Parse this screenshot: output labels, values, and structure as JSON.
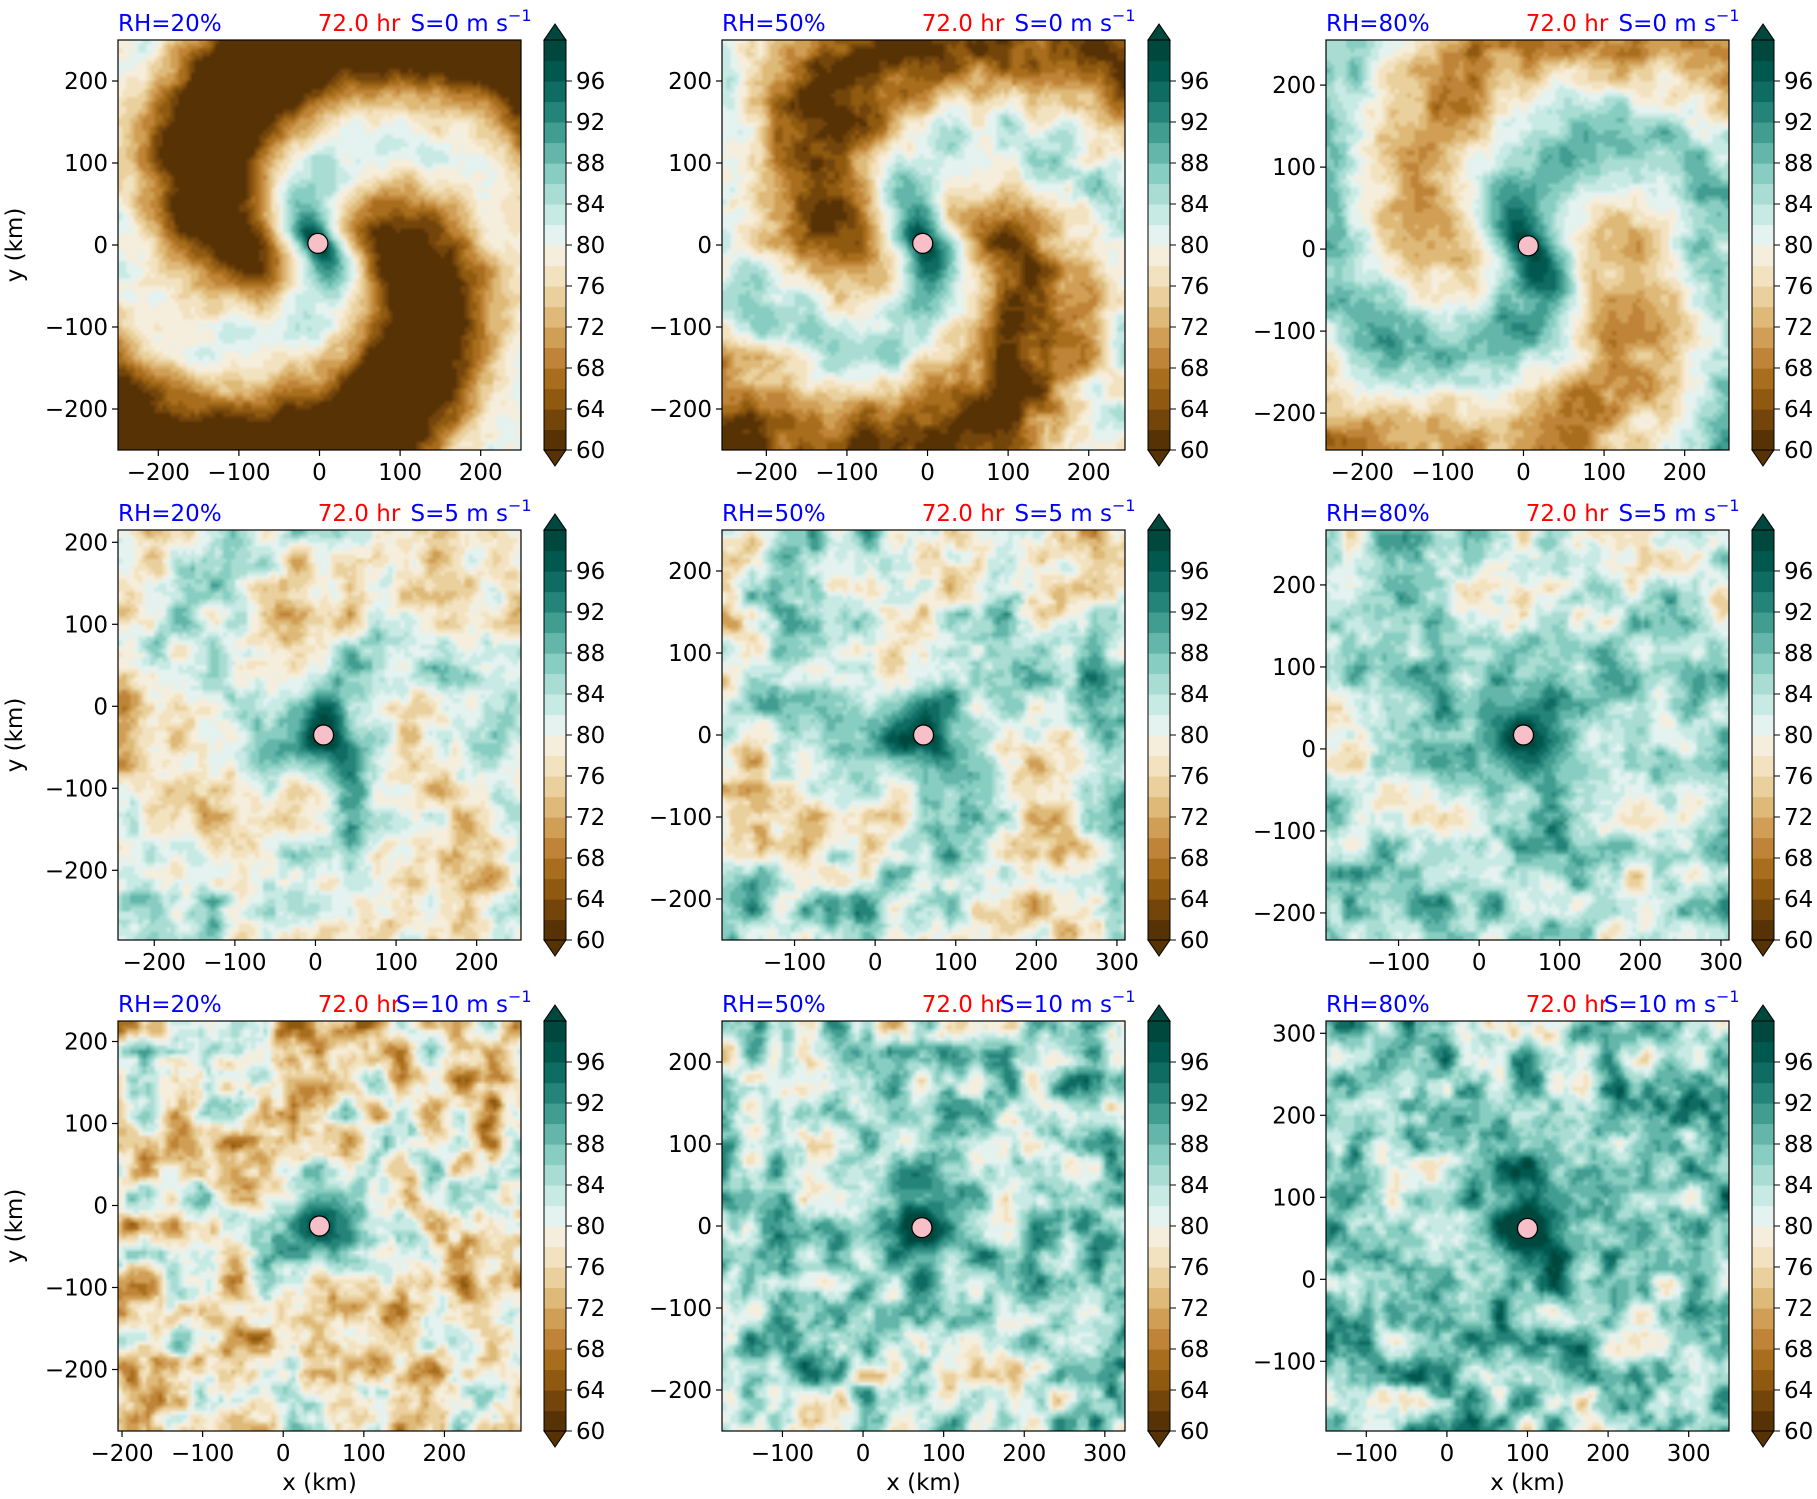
{
  "figure": {
    "description_free": true,
    "colorbar": {
      "levels": [
        60,
        62,
        64,
        66,
        68,
        70,
        72,
        74,
        76,
        78,
        80,
        82,
        84,
        86,
        88,
        90,
        92,
        94,
        96,
        98,
        100
      ],
      "tick_labels": [
        "60",
        "64",
        "68",
        "72",
        "76",
        "80",
        "84",
        "88",
        "92",
        "96"
      ],
      "colors": [
        "#573205",
        "#74450b",
        "#8f5a10",
        "#a86e1d",
        "#bf8437",
        "#d09f55",
        "#deb978",
        "#ead09d",
        "#f3e2bf",
        "#f6eedc",
        "#e4f2f0",
        "#c8eae4",
        "#a9ddd3",
        "#88cdc1",
        "#63b6a9",
        "#419d90",
        "#258479",
        "#0e6c62",
        "#01584e",
        "#00473d"
      ],
      "extend": "both"
    },
    "marker_color": "#f7c0c8",
    "title_colors": {
      "rh": "#0000ff",
      "time": "#ff0000",
      "shear": "#0000ff"
    }
  },
  "chart_data": [
    {
      "type": "heatmap",
      "row": 0,
      "col": 0,
      "title_rh": "RH=20%",
      "title_time": "72.0 hr",
      "title_shear": "S=0 m s",
      "title_shear_exp": "−1",
      "xlim": [
        -250,
        250
      ],
      "ylim": [
        -250,
        250
      ],
      "xticks": [
        -200,
        -100,
        0,
        100,
        200
      ],
      "xtick_labels": [
        "−200",
        "−100",
        "0",
        "100",
        "200"
      ],
      "yticks": [
        -200,
        -100,
        0,
        100,
        200
      ],
      "ytick_labels": [
        "−200",
        "−100",
        "0",
        "100",
        "200"
      ],
      "xlabel": "",
      "ylabel": "y (km)",
      "center": [
        -2,
        2
      ]
    },
    {
      "type": "heatmap",
      "row": 0,
      "col": 1,
      "title_rh": "RH=50%",
      "title_time": "72.0 hr",
      "title_shear": "S=0 m s",
      "title_shear_exp": "−1",
      "xlim": [
        -255,
        245
      ],
      "ylim": [
        -250,
        250
      ],
      "xticks": [
        -200,
        -100,
        0,
        100,
        200
      ],
      "xtick_labels": [
        "−200",
        "−100",
        "0",
        "100",
        "200"
      ],
      "yticks": [
        -200,
        -100,
        0,
        100,
        200
      ],
      "ytick_labels": [
        "−200",
        "−100",
        "0",
        "100",
        "200"
      ],
      "xlabel": "",
      "ylabel": "",
      "center": [
        -6,
        2
      ]
    },
    {
      "type": "heatmap",
      "row": 0,
      "col": 2,
      "title_rh": "RH=80%",
      "title_time": "72.0 hr",
      "title_shear": "S=0 m s",
      "title_shear_exp": "−1",
      "xlim": [
        -245,
        255
      ],
      "ylim": [
        -245,
        255
      ],
      "xticks": [
        -200,
        -100,
        0,
        100,
        200
      ],
      "xtick_labels": [
        "−200",
        "−100",
        "0",
        "100",
        "200"
      ],
      "yticks": [
        -200,
        -100,
        0,
        100,
        200
      ],
      "ytick_labels": [
        "−200",
        "−100",
        "0",
        "100",
        "200"
      ],
      "xlabel": "",
      "ylabel": "",
      "center": [
        6,
        4
      ]
    },
    {
      "type": "heatmap",
      "row": 1,
      "col": 0,
      "title_rh": "RH=20%",
      "title_time": "72.0 hr",
      "title_shear": "S=5 m s",
      "title_shear_exp": "−1",
      "xlim": [
        -245,
        255
      ],
      "ylim": [
        -285,
        215
      ],
      "xticks": [
        -200,
        -100,
        0,
        100,
        200
      ],
      "xtick_labels": [
        "−200",
        "−100",
        "0",
        "100",
        "200"
      ],
      "yticks": [
        -200,
        -100,
        0,
        100,
        200
      ],
      "ytick_labels": [
        "−200",
        "−100",
        "0",
        "100",
        "200"
      ],
      "xlabel": "",
      "ylabel": "y (km)",
      "center": [
        10,
        -35
      ]
    },
    {
      "type": "heatmap",
      "row": 1,
      "col": 1,
      "title_rh": "RH=50%",
      "title_time": "72.0 hr",
      "title_shear": "S=5 m s",
      "title_shear_exp": "−1",
      "xlim": [
        -190,
        310
      ],
      "ylim": [
        -250,
        250
      ],
      "xticks": [
        -100,
        0,
        100,
        200,
        300
      ],
      "xtick_labels": [
        "−100",
        "0",
        "100",
        "200",
        "300"
      ],
      "yticks": [
        -200,
        -100,
        0,
        100,
        200
      ],
      "ytick_labels": [
        "−200",
        "−100",
        "0",
        "100",
        "200"
      ],
      "xlabel": "",
      "ylabel": "",
      "center": [
        60,
        0
      ]
    },
    {
      "type": "heatmap",
      "row": 1,
      "col": 2,
      "title_rh": "RH=80%",
      "title_time": "72.0 hr",
      "title_shear": "S=5 m s",
      "title_shear_exp": "−1",
      "xlim": [
        -190,
        310
      ],
      "ylim": [
        -233,
        267
      ],
      "xticks": [
        -100,
        0,
        100,
        200,
        300
      ],
      "xtick_labels": [
        "−100",
        "0",
        "100",
        "200",
        "300"
      ],
      "yticks": [
        -200,
        -100,
        0,
        100,
        200
      ],
      "ytick_labels": [
        "−200",
        "−100",
        "0",
        "100",
        "200"
      ],
      "xlabel": "",
      "ylabel": "",
      "center": [
        55,
        17
      ]
    },
    {
      "type": "heatmap",
      "row": 2,
      "col": 0,
      "title_rh": "RH=20%",
      "title_time": "72.0 hr",
      "title_shear": "S=10 m s",
      "title_shear_exp": "−1",
      "xlim": [
        -205,
        295
      ],
      "ylim": [
        -275,
        225
      ],
      "xticks": [
        -200,
        -100,
        0,
        100,
        200
      ],
      "xtick_labels": [
        "−200",
        "−100",
        "0",
        "100",
        "200"
      ],
      "yticks": [
        -200,
        -100,
        0,
        100,
        200
      ],
      "ytick_labels": [
        "−200",
        "−100",
        "0",
        "100",
        "200"
      ],
      "xlabel": "x (km)",
      "ylabel": "y (km)",
      "center": [
        45,
        -25
      ]
    },
    {
      "type": "heatmap",
      "row": 2,
      "col": 1,
      "title_rh": "RH=50%",
      "title_time": "72.0 hr",
      "title_shear": "S=10 m s",
      "title_shear_exp": "−1",
      "xlim": [
        -175,
        325
      ],
      "ylim": [
        -250,
        250
      ],
      "xticks": [
        -100,
        0,
        100,
        200,
        300
      ],
      "xtick_labels": [
        "−100",
        "0",
        "100",
        "200",
        "300"
      ],
      "yticks": [
        -200,
        -100,
        0,
        100,
        200
      ],
      "ytick_labels": [
        "−200",
        "−100",
        "0",
        "100",
        "200"
      ],
      "xlabel": "x (km)",
      "ylabel": "",
      "center": [
        73,
        -2
      ]
    },
    {
      "type": "heatmap",
      "row": 2,
      "col": 2,
      "title_rh": "RH=80%",
      "title_time": "72.0 hr",
      "title_shear": "S=10 m s",
      "title_shear_exp": "−1",
      "xlim": [
        -150,
        350
      ],
      "ylim": [
        -185,
        315
      ],
      "xticks": [
        -100,
        0,
        100,
        200,
        300
      ],
      "xtick_labels": [
        "−100",
        "0",
        "100",
        "200",
        "300"
      ],
      "yticks": [
        -100,
        0,
        100,
        200,
        300
      ],
      "ytick_labels": [
        "−100",
        "0",
        "100",
        "200",
        "300"
      ],
      "xlabel": "x (km)",
      "ylabel": "",
      "center": [
        100,
        62
      ]
    }
  ]
}
